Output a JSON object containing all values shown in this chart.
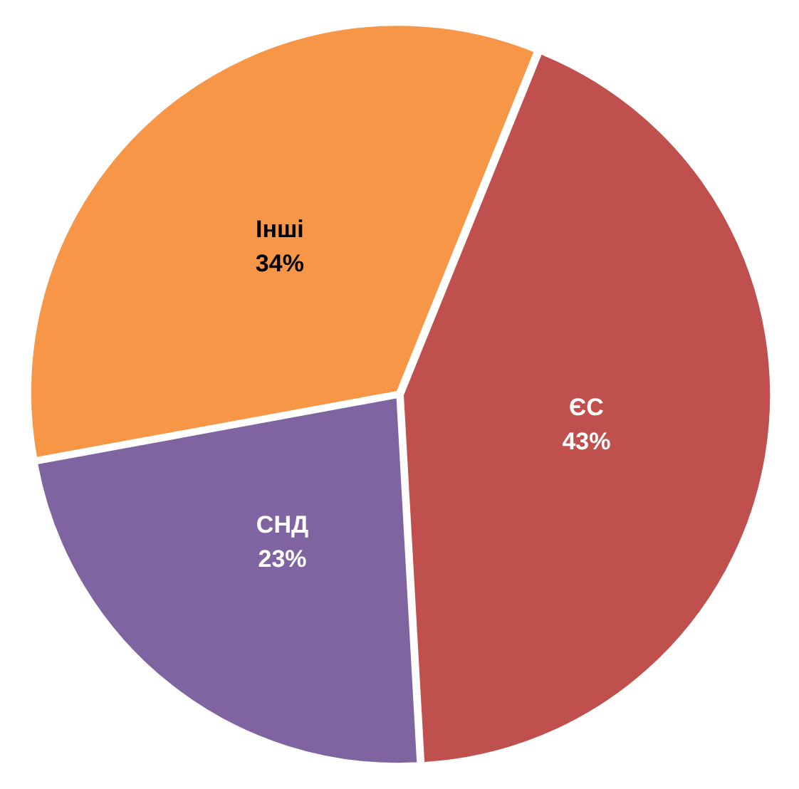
{
  "chart_data": {
    "type": "pie",
    "categories": [
      "ЄС",
      "СНД",
      "Інші"
    ],
    "values": [
      43,
      23,
      34
    ],
    "value_labels": [
      "43%",
      "23%",
      "34%"
    ],
    "colors": [
      "#c0504d",
      "#8064a2",
      "#f79646"
    ],
    "legend": false
  }
}
